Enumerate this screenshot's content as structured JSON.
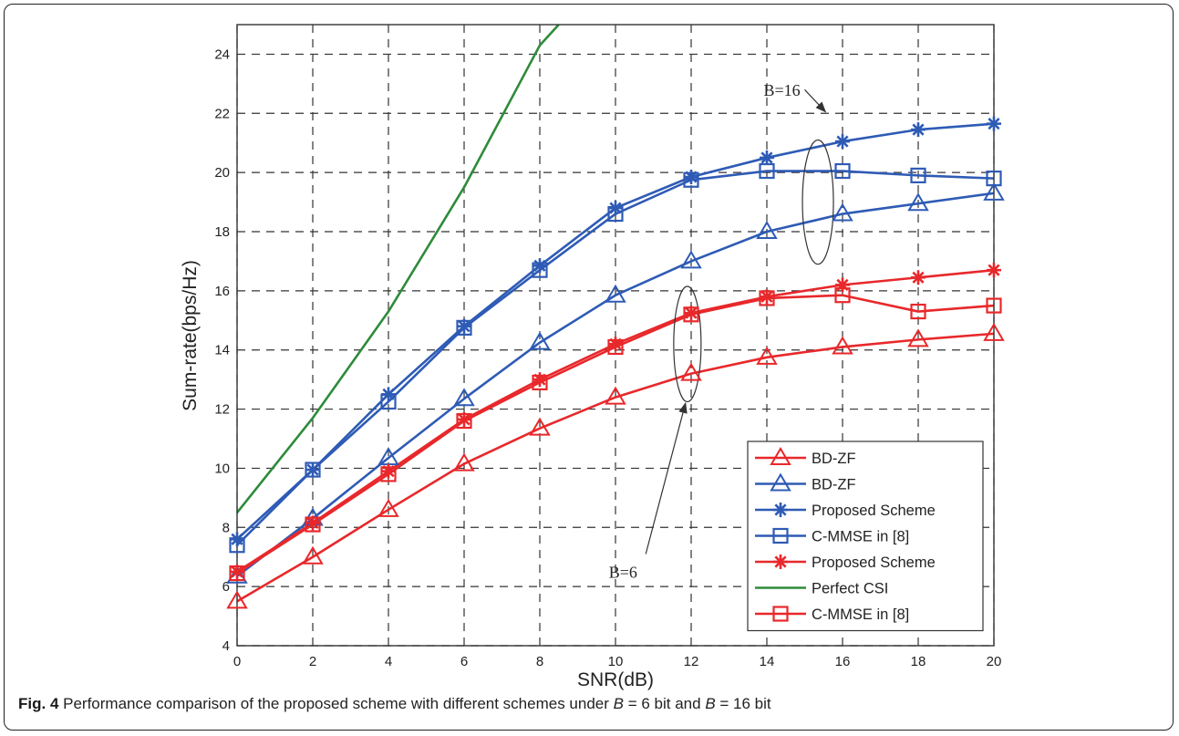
{
  "chart_data": {
    "type": "line",
    "xlabel": "SNR(dB)",
    "ylabel": "Sum-rate(bps/Hz)",
    "xlim": [
      0,
      20
    ],
    "ylim": [
      4,
      25
    ],
    "xticks": [
      "0",
      "2",
      "4",
      "6",
      "8",
      "10",
      "12",
      "14",
      "16",
      "18",
      "20"
    ],
    "yticks": [
      "4",
      "6",
      "8",
      "10",
      "12",
      "14",
      "16",
      "18",
      "20",
      "22",
      "24"
    ],
    "grid": true,
    "legend_position": "bottom-right",
    "x": [
      0,
      2,
      4,
      6,
      8,
      10,
      12,
      14,
      16,
      18,
      20
    ],
    "series": [
      {
        "name": "BD-ZF",
        "color": "#e8282b",
        "marker": "triangle",
        "values": [
          5.5,
          7.0,
          8.6,
          10.15,
          11.35,
          12.4,
          13.2,
          13.75,
          14.1,
          14.35,
          14.55
        ]
      },
      {
        "name": "BD-ZF",
        "color": "#2e5bb5",
        "marker": "triangle",
        "values": [
          6.35,
          8.3,
          10.35,
          12.35,
          14.25,
          15.85,
          17.0,
          18.0,
          18.6,
          18.95,
          19.3
        ]
      },
      {
        "name": "Proposed Scheme",
        "color": "#2e5bb5",
        "marker": "star",
        "values": [
          7.6,
          9.95,
          12.5,
          14.8,
          16.85,
          18.8,
          19.85,
          20.5,
          21.05,
          21.45,
          21.65
        ]
      },
      {
        "name": "C-MMSE in [8]",
        "color": "#2e5bb5",
        "marker": "square",
        "values": [
          7.4,
          9.95,
          12.25,
          14.75,
          16.7,
          18.6,
          19.75,
          20.05,
          20.05,
          19.9,
          19.8
        ]
      },
      {
        "name": "Proposed Scheme",
        "color": "#e8282b",
        "marker": "star",
        "values": [
          6.5,
          8.15,
          9.9,
          11.65,
          13.0,
          14.2,
          15.25,
          15.8,
          16.2,
          16.45,
          16.7
        ]
      },
      {
        "name": "Perfect CSI",
        "color": "#2e8b3a",
        "marker": "none",
        "x": [
          0,
          2,
          4,
          6,
          8,
          8.5
        ],
        "values": [
          8.5,
          11.7,
          15.3,
          19.5,
          24.3,
          25.0
        ]
      },
      {
        "name": "C-MMSE in [8]",
        "color": "#e8282b",
        "marker": "square",
        "values": [
          6.45,
          8.1,
          9.8,
          11.6,
          12.9,
          14.1,
          15.2,
          15.75,
          15.85,
          15.3,
          15.5
        ]
      }
    ],
    "annotations": [
      {
        "text": "B=16",
        "x": 14.4,
        "y": 22.6
      },
      {
        "text": "B=6",
        "x": 10.2,
        "y": 6.3
      }
    ]
  },
  "caption": {
    "label": "Fig. 4",
    "text_a": " Performance comparison of the proposed scheme with different schemes under ",
    "var": "B",
    "text_b": " = 6 bit and ",
    "text_c": " = 16 bit"
  }
}
